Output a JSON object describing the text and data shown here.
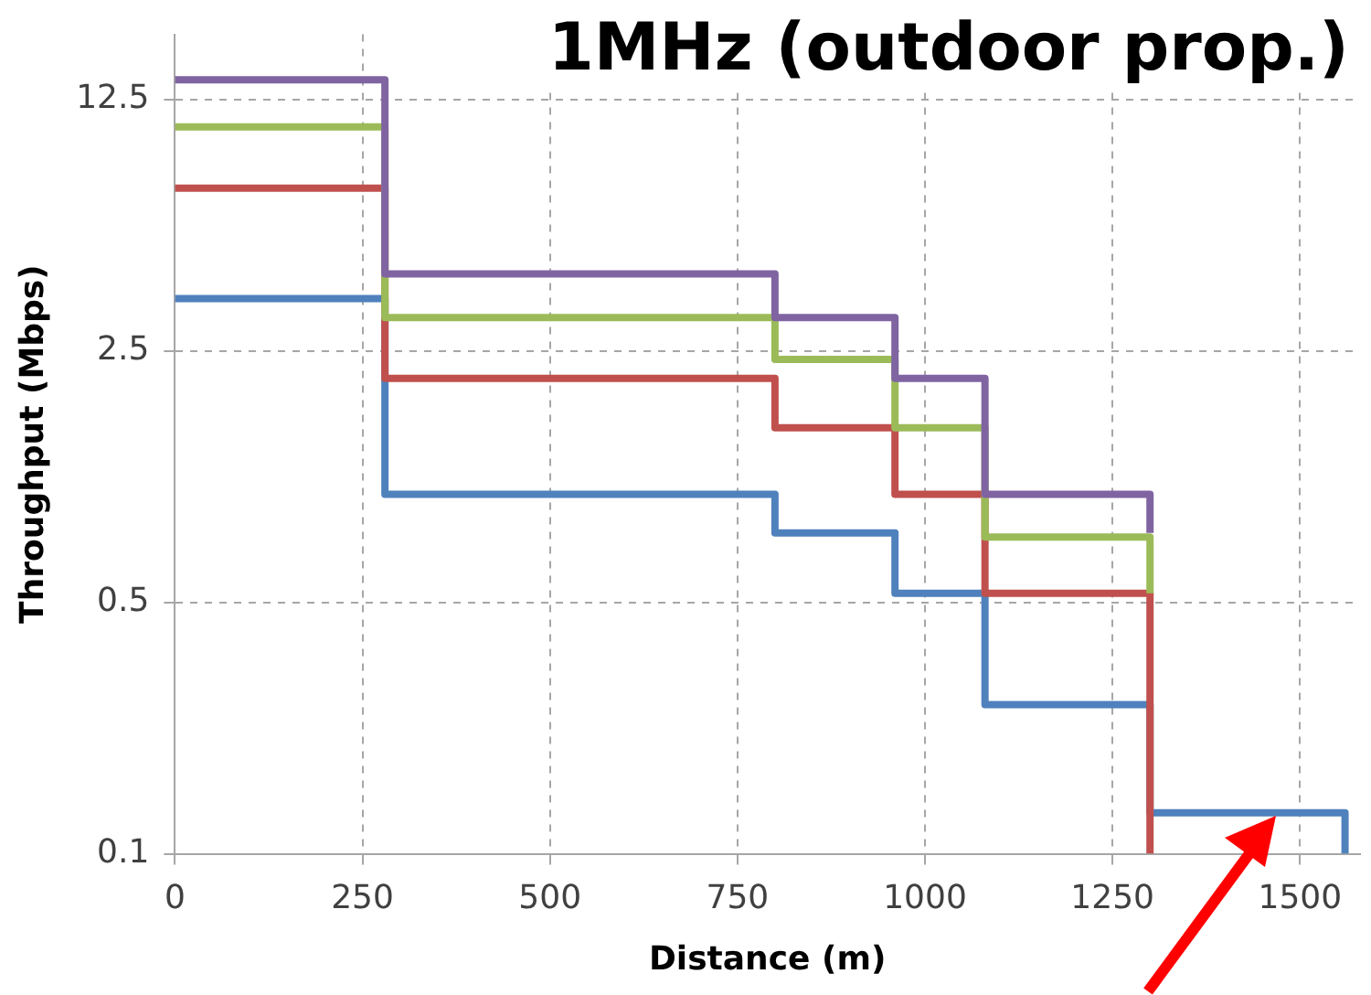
{
  "chart_data": {
    "type": "step",
    "title": "1MHz (outdoor prop.)",
    "xlabel": "Distance (m)",
    "ylabel": "Throughput (Mbps)",
    "series": [
      {
        "color": "#8064a2",
        "x": [
          0,
          280,
          800,
          960,
          1080,
          1300
        ],
        "values": [
          14.2,
          4.1,
          3.1,
          2.1,
          1.0,
          0.78
        ]
      },
      {
        "color": "#9bbb59",
        "x": [
          0,
          280,
          800,
          960,
          1080,
          1300
        ],
        "values": [
          10.5,
          3.1,
          2.37,
          1.53,
          0.76,
          0.53
        ]
      },
      {
        "color": "#c0504d",
        "x": [
          0,
          280,
          800,
          960,
          1080,
          1300
        ],
        "values": [
          7.1,
          2.1,
          1.53,
          1.0,
          0.53,
          0.1
        ]
      },
      {
        "color": "#4f81bd",
        "x": [
          0,
          280,
          800,
          960,
          1080,
          1300,
          1560
        ],
        "values": [
          3.5,
          1.0,
          0.78,
          0.53,
          0.26,
          0.13,
          0.1
        ]
      }
    ],
    "xlim": [
      0,
      1580
    ],
    "xticks": [
      0,
      250,
      500,
      750,
      1000,
      1250,
      1500
    ],
    "ylim": [
      0.1,
      19
    ],
    "yticks": [
      0.1,
      0.5,
      2.5,
      12.5
    ],
    "log": "y",
    "grid": true,
    "legend": false,
    "marker": "none",
    "line_style": "solid"
  }
}
